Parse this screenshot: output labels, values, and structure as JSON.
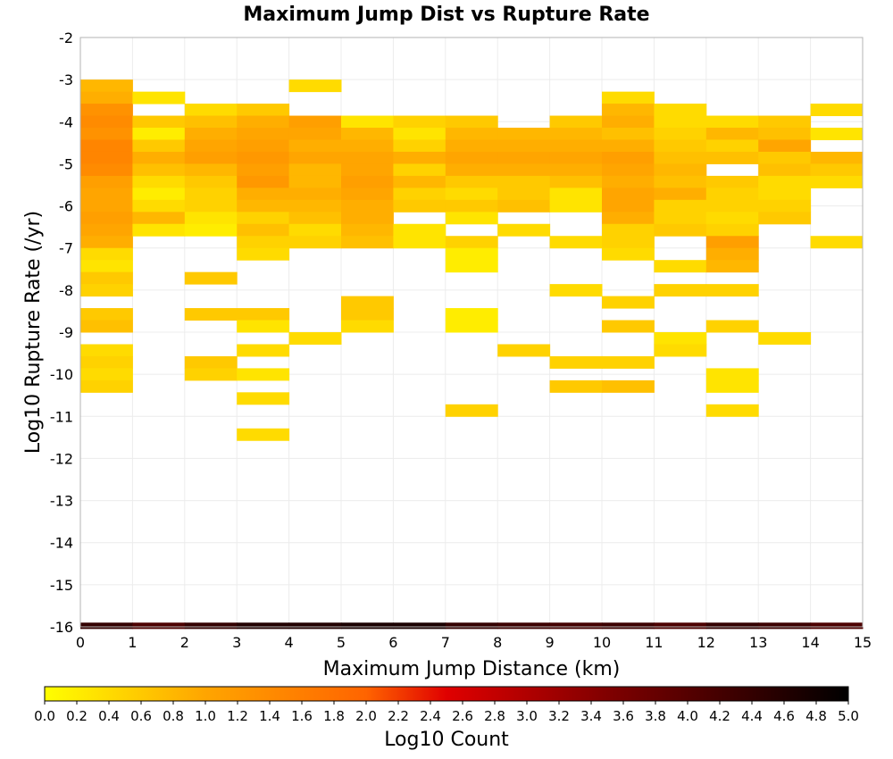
{
  "chart_data": {
    "type": "heatmap",
    "title": "Maximum Jump Dist vs Rupture Rate",
    "xlabel": "Maximum Jump Distance (km)",
    "ylabel": "Log10 Rupture Rate (/yr)",
    "xlim": [
      0,
      15
    ],
    "ylim": [
      -16,
      -2
    ],
    "x_ticks": [
      "0",
      "1",
      "2",
      "3",
      "4",
      "5",
      "6",
      "7",
      "8",
      "9",
      "10",
      "11",
      "12",
      "13",
      "14",
      "15"
    ],
    "y_ticks": [
      "-2",
      "-3",
      "-4",
      "-5",
      "-6",
      "-7",
      "-8",
      "-9",
      "-10",
      "-11",
      "-12",
      "-13",
      "-14",
      "-15",
      "-16"
    ],
    "x_bin_width": 1,
    "y_bin_height": 0.2857,
    "grid": true,
    "colorbar": {
      "label": "Log10 Count",
      "range": [
        0,
        5
      ],
      "colormap": [
        "#ffff00",
        "#ffa500",
        "#ff6400",
        "#e00000",
        "#800000",
        "#000000"
      ],
      "ticks": [
        "0.0",
        "0.2",
        "0.4",
        "0.6",
        "0.8",
        "1.0",
        "1.2",
        "1.4",
        "1.6",
        "1.8",
        "2.0",
        "2.2",
        "2.4",
        "2.6",
        "2.8",
        "3.0",
        "3.2",
        "3.4",
        "3.6",
        "3.8",
        "4.0",
        "4.2",
        "4.4",
        "4.6",
        "4.8",
        "5.0"
      ]
    },
    "cells": [
      [
        0.5,
        -3.143,
        0.8
      ],
      [
        0.5,
        -3.429,
        0.9
      ],
      [
        0.5,
        -3.714,
        1.3
      ],
      [
        0.5,
        -4.0,
        1.4
      ],
      [
        0.5,
        -4.286,
        1.3
      ],
      [
        0.5,
        -4.571,
        1.5
      ],
      [
        0.5,
        -4.857,
        1.5
      ],
      [
        0.5,
        -5.143,
        1.4
      ],
      [
        0.5,
        -5.429,
        1.1
      ],
      [
        0.5,
        -5.714,
        1.0
      ],
      [
        0.5,
        -6.0,
        1.0
      ],
      [
        0.5,
        -6.286,
        1.1
      ],
      [
        0.5,
        -6.571,
        1.0
      ],
      [
        0.5,
        -6.857,
        0.9
      ],
      [
        0.5,
        -7.143,
        0.4
      ],
      [
        0.5,
        -7.429,
        0.3
      ],
      [
        0.5,
        -7.714,
        0.6
      ],
      [
        0.5,
        -8.0,
        0.5
      ],
      [
        0.5,
        -8.571,
        0.6
      ],
      [
        0.5,
        -8.857,
        0.7
      ],
      [
        0.5,
        -9.429,
        0.4
      ],
      [
        0.5,
        -9.714,
        0.5
      ],
      [
        0.5,
        -10.0,
        0.4
      ],
      [
        0.5,
        -10.286,
        0.5
      ],
      [
        1.5,
        -3.429,
        0.3
      ],
      [
        1.5,
        -4.0,
        0.6
      ],
      [
        1.5,
        -4.286,
        0.2
      ],
      [
        1.5,
        -4.571,
        0.6
      ],
      [
        1.5,
        -4.857,
        0.9
      ],
      [
        1.5,
        -5.143,
        0.7
      ],
      [
        1.5,
        -5.429,
        0.4
      ],
      [
        1.5,
        -5.714,
        0.2
      ],
      [
        1.5,
        -6.0,
        0.4
      ],
      [
        1.5,
        -6.286,
        0.8
      ],
      [
        1.5,
        -6.571,
        0.3
      ],
      [
        2.5,
        -3.714,
        0.4
      ],
      [
        2.5,
        -4.0,
        0.7
      ],
      [
        2.5,
        -4.286,
        0.9
      ],
      [
        2.5,
        -4.571,
        1.0
      ],
      [
        2.5,
        -4.857,
        1.1
      ],
      [
        2.5,
        -5.143,
        0.8
      ],
      [
        2.5,
        -5.429,
        0.6
      ],
      [
        2.5,
        -5.714,
        0.5
      ],
      [
        2.5,
        -6.0,
        0.5
      ],
      [
        2.5,
        -6.286,
        0.3
      ],
      [
        2.5,
        -6.571,
        0.2
      ],
      [
        2.5,
        -7.714,
        0.6
      ],
      [
        2.5,
        -8.571,
        0.6
      ],
      [
        2.5,
        -9.714,
        0.6
      ],
      [
        2.5,
        -10.0,
        0.5
      ],
      [
        3.5,
        -3.714,
        0.6
      ],
      [
        3.5,
        -4.0,
        0.9
      ],
      [
        3.5,
        -4.286,
        1.0
      ],
      [
        3.5,
        -4.571,
        1.1
      ],
      [
        3.5,
        -4.857,
        1.2
      ],
      [
        3.5,
        -5.143,
        1.1
      ],
      [
        3.5,
        -5.429,
        1.2
      ],
      [
        3.5,
        -5.714,
        0.9
      ],
      [
        3.5,
        -6.0,
        0.8
      ],
      [
        3.5,
        -6.286,
        0.5
      ],
      [
        3.5,
        -6.571,
        0.7
      ],
      [
        3.5,
        -6.857,
        0.5
      ],
      [
        3.5,
        -7.143,
        0.4
      ],
      [
        3.5,
        -8.571,
        0.6
      ],
      [
        3.5,
        -8.857,
        0.3
      ],
      [
        3.5,
        -9.429,
        0.4
      ],
      [
        3.5,
        -10.0,
        0.3
      ],
      [
        3.5,
        -10.571,
        0.4
      ],
      [
        3.5,
        -11.429,
        0.4
      ],
      [
        4.5,
        -3.143,
        0.4
      ],
      [
        4.5,
        -4.0,
        1.1
      ],
      [
        4.5,
        -4.286,
        1.0
      ],
      [
        4.5,
        -4.571,
        0.9
      ],
      [
        4.5,
        -4.857,
        1.0
      ],
      [
        4.5,
        -5.143,
        0.8
      ],
      [
        4.5,
        -5.429,
        0.8
      ],
      [
        4.5,
        -5.714,
        0.9
      ],
      [
        4.5,
        -6.0,
        0.8
      ],
      [
        4.5,
        -6.286,
        0.7
      ],
      [
        4.5,
        -6.571,
        0.4
      ],
      [
        4.5,
        -6.857,
        0.5
      ],
      [
        4.5,
        -9.143,
        0.4
      ],
      [
        5.5,
        -4.0,
        0.3
      ],
      [
        5.5,
        -4.286,
        0.8
      ],
      [
        5.5,
        -4.571,
        0.9
      ],
      [
        5.5,
        -4.857,
        1.0
      ],
      [
        5.5,
        -5.143,
        1.0
      ],
      [
        5.5,
        -5.429,
        1.1
      ],
      [
        5.5,
        -5.714,
        1.0
      ],
      [
        5.5,
        -6.0,
        0.9
      ],
      [
        5.5,
        -6.286,
        0.9
      ],
      [
        5.5,
        -6.571,
        0.8
      ],
      [
        5.5,
        -6.857,
        0.7
      ],
      [
        5.5,
        -8.286,
        0.6
      ],
      [
        5.5,
        -8.571,
        0.6
      ],
      [
        5.5,
        -8.857,
        0.4
      ],
      [
        6.5,
        -4.0,
        0.5
      ],
      [
        6.5,
        -4.286,
        0.3
      ],
      [
        6.5,
        -4.571,
        0.5
      ],
      [
        6.5,
        -4.857,
        0.9
      ],
      [
        6.5,
        -5.143,
        0.5
      ],
      [
        6.5,
        -5.429,
        0.8
      ],
      [
        6.5,
        -5.714,
        0.5
      ],
      [
        6.5,
        -6.0,
        0.6
      ],
      [
        6.5,
        -6.571,
        0.3
      ],
      [
        6.5,
        -6.857,
        0.3
      ],
      [
        7.5,
        -4.0,
        0.6
      ],
      [
        7.5,
        -4.286,
        0.8
      ],
      [
        7.5,
        -4.571,
        0.9
      ],
      [
        7.5,
        -4.857,
        1.0
      ],
      [
        7.5,
        -5.143,
        0.9
      ],
      [
        7.5,
        -5.429,
        0.6
      ],
      [
        7.5,
        -5.714,
        0.4
      ],
      [
        7.5,
        -6.0,
        0.6
      ],
      [
        7.5,
        -6.286,
        0.3
      ],
      [
        7.5,
        -6.857,
        0.5
      ],
      [
        7.5,
        -7.143,
        0.2
      ],
      [
        7.5,
        -7.429,
        0.2
      ],
      [
        7.5,
        -8.571,
        0.2
      ],
      [
        7.5,
        -8.857,
        0.2
      ],
      [
        7.5,
        -10.857,
        0.5
      ],
      [
        8.5,
        -4.286,
        0.8
      ],
      [
        8.5,
        -4.571,
        0.9
      ],
      [
        8.5,
        -4.857,
        1.0
      ],
      [
        8.5,
        -5.143,
        0.9
      ],
      [
        8.5,
        -5.429,
        0.6
      ],
      [
        8.5,
        -5.714,
        0.6
      ],
      [
        8.5,
        -6.0,
        0.7
      ],
      [
        8.5,
        -6.571,
        0.4
      ],
      [
        8.5,
        -9.429,
        0.5
      ],
      [
        9.5,
        -4.0,
        0.6
      ],
      [
        9.5,
        -4.286,
        0.8
      ],
      [
        9.5,
        -4.571,
        0.9
      ],
      [
        9.5,
        -4.857,
        1.0
      ],
      [
        9.5,
        -5.143,
        0.9
      ],
      [
        9.5,
        -5.429,
        0.7
      ],
      [
        9.5,
        -5.714,
        0.3
      ],
      [
        9.5,
        -6.0,
        0.3
      ],
      [
        9.5,
        -6.857,
        0.4
      ],
      [
        9.5,
        -8.0,
        0.4
      ],
      [
        9.5,
        -9.714,
        0.5
      ],
      [
        9.5,
        -10.286,
        0.6
      ],
      [
        10.5,
        -3.429,
        0.4
      ],
      [
        10.5,
        -3.714,
        0.8
      ],
      [
        10.5,
        -4.0,
        0.9
      ],
      [
        10.5,
        -4.286,
        0.7
      ],
      [
        10.5,
        -4.571,
        0.9
      ],
      [
        10.5,
        -4.857,
        1.1
      ],
      [
        10.5,
        -5.143,
        1.0
      ],
      [
        10.5,
        -5.429,
        0.9
      ],
      [
        10.5,
        -5.714,
        1.0
      ],
      [
        10.5,
        -6.0,
        1.0
      ],
      [
        10.5,
        -6.286,
        0.9
      ],
      [
        10.5,
        -6.571,
        0.5
      ],
      [
        10.5,
        -6.857,
        0.5
      ],
      [
        10.5,
        -7.143,
        0.4
      ],
      [
        10.5,
        -8.286,
        0.5
      ],
      [
        10.5,
        -8.857,
        0.6
      ],
      [
        10.5,
        -9.714,
        0.5
      ],
      [
        10.5,
        -10.286,
        0.7
      ],
      [
        11.5,
        -3.714,
        0.4
      ],
      [
        11.5,
        -4.0,
        0.4
      ],
      [
        11.5,
        -4.286,
        0.5
      ],
      [
        11.5,
        -4.571,
        0.6
      ],
      [
        11.5,
        -4.857,
        0.7
      ],
      [
        11.5,
        -5.143,
        0.8
      ],
      [
        11.5,
        -5.429,
        0.7
      ],
      [
        11.5,
        -5.714,
        0.9
      ],
      [
        11.5,
        -6.0,
        0.5
      ],
      [
        11.5,
        -6.286,
        0.5
      ],
      [
        11.5,
        -6.571,
        0.6
      ],
      [
        11.5,
        -7.429,
        0.4
      ],
      [
        11.5,
        -8.0,
        0.5
      ],
      [
        11.5,
        -9.143,
        0.3
      ],
      [
        11.5,
        -9.429,
        0.4
      ],
      [
        12.5,
        -4.0,
        0.4
      ],
      [
        12.5,
        -4.286,
        0.8
      ],
      [
        12.5,
        -4.571,
        0.5
      ],
      [
        12.5,
        -4.857,
        0.7
      ],
      [
        12.5,
        -5.429,
        0.6
      ],
      [
        12.5,
        -5.714,
        0.5
      ],
      [
        12.5,
        -6.0,
        0.5
      ],
      [
        12.5,
        -6.286,
        0.4
      ],
      [
        12.5,
        -6.571,
        0.5
      ],
      [
        12.5,
        -6.857,
        1.1
      ],
      [
        12.5,
        -7.143,
        0.9
      ],
      [
        12.5,
        -7.429,
        0.8
      ],
      [
        12.5,
        -8.0,
        0.5
      ],
      [
        12.5,
        -8.857,
        0.5
      ],
      [
        12.5,
        -10.0,
        0.3
      ],
      [
        12.5,
        -10.286,
        0.3
      ],
      [
        12.5,
        -10.857,
        0.4
      ],
      [
        13.5,
        -4.0,
        0.6
      ],
      [
        13.5,
        -4.286,
        0.7
      ],
      [
        13.5,
        -4.571,
        1.0
      ],
      [
        13.5,
        -4.857,
        0.6
      ],
      [
        13.5,
        -5.143,
        0.7
      ],
      [
        13.5,
        -5.429,
        0.4
      ],
      [
        13.5,
        -5.714,
        0.4
      ],
      [
        13.5,
        -6.0,
        0.5
      ],
      [
        13.5,
        -6.286,
        0.6
      ],
      [
        13.5,
        -9.143,
        0.4
      ],
      [
        14.5,
        -3.714,
        0.4
      ],
      [
        14.5,
        -4.286,
        0.3
      ],
      [
        14.5,
        -4.857,
        0.8
      ],
      [
        14.5,
        -5.143,
        0.6
      ],
      [
        14.5,
        -5.429,
        0.4
      ],
      [
        14.5,
        -6.857,
        0.4
      ]
    ],
    "bottom_strip": {
      "y": -16,
      "values": [
        4.4,
        4.1,
        4.4,
        4.6,
        4.6,
        4.7,
        4.7,
        4.4,
        4.3,
        4.2,
        4.3,
        4.1,
        4.4,
        4.3,
        4.1
      ]
    }
  }
}
